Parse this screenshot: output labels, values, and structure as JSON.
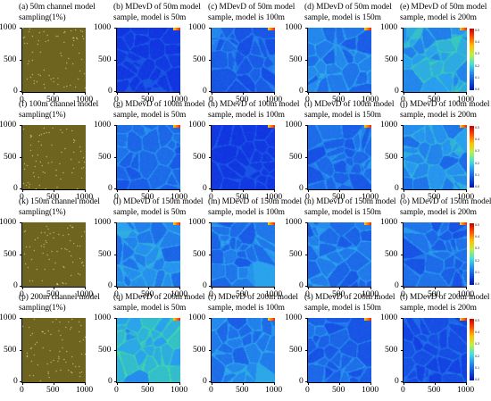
{
  "figure": {
    "panels": [
      {
        "letter": "a",
        "kind": "sampling",
        "line1": "(a) 50m channel model",
        "line2": "sampling(1%)",
        "intensity": 0
      },
      {
        "letter": "b",
        "kind": "mdevd",
        "line1": "(b) MDevD of 50m model",
        "line2": "sample, model is 50m",
        "intensity": 0.05
      },
      {
        "letter": "c",
        "kind": "mdevd",
        "line1": "(c) MDevD of 50m model",
        "line2": "sample, model is 100m",
        "intensity": 0.25
      },
      {
        "letter": "d",
        "kind": "mdevd",
        "line1": "(d) MDevD of 50m model",
        "line2": "sample, model is 150m",
        "intensity": 0.4
      },
      {
        "letter": "e",
        "kind": "mdevd",
        "line1": "(e) MDevD of 50m model",
        "line2": "sample, model is 200m",
        "intensity": 0.65,
        "colorbar": true
      },
      {
        "letter": "f",
        "kind": "sampling",
        "line1": "(f) 100m channel model",
        "line2": "sampling(1%)",
        "intensity": 0
      },
      {
        "letter": "g",
        "kind": "mdevd",
        "line1": "(g) MDevD of 100m model",
        "line2": "sample, model is 50m",
        "intensity": 0.3
      },
      {
        "letter": "h",
        "kind": "mdevd",
        "line1": "(h) MDevD of 100m model",
        "line2": "sample, model is 100m",
        "intensity": 0.05
      },
      {
        "letter": "i",
        "kind": "mdevd",
        "line1": "(i) MDevD of 100m model",
        "line2": "sample, model is 150m",
        "intensity": 0.3
      },
      {
        "letter": "j",
        "kind": "mdevd",
        "line1": "(j) MDevD of 100m model",
        "line2": "sample, model is 200m",
        "intensity": 0.5,
        "colorbar": true
      },
      {
        "letter": "k",
        "kind": "sampling",
        "line1": "(k) 150m channel model",
        "line2": "sampling(1%)",
        "intensity": 0
      },
      {
        "letter": "l",
        "kind": "mdevd",
        "line1": "(l) MDevD of 150m model",
        "line2": "sample, model is 50m",
        "intensity": 0.45
      },
      {
        "letter": "m",
        "kind": "mdevd",
        "line1": "(m) MDevD of 150m model",
        "line2": "sample, model is 100m",
        "intensity": 0.35
      },
      {
        "letter": "n",
        "kind": "mdevd",
        "line1": "(n) MDevD of 150m model",
        "line2": "sample, model is 150m",
        "intensity": 0.35
      },
      {
        "letter": "o",
        "kind": "mdevd",
        "line1": "(o) MDevD of 150m model",
        "line2": "sample, model is 200m",
        "intensity": 0.3,
        "colorbar": true
      },
      {
        "letter": "p",
        "kind": "sampling",
        "line1": "(p) 200m channel model",
        "line2": "sampling(1%)",
        "intensity": 0
      },
      {
        "letter": "q",
        "kind": "mdevd",
        "line1": "(q) MDevD of 200m model",
        "line2": "sample, model is 50m",
        "intensity": 0.75
      },
      {
        "letter": "r",
        "kind": "mdevd",
        "line1": "(r) MDevD of 200m model",
        "line2": "sample, model is 100m",
        "intensity": 0.4
      },
      {
        "letter": "s",
        "kind": "mdevd",
        "line1": "(s) MDevD of 200m model",
        "line2": "sample, model is 150m",
        "intensity": 0.3
      },
      {
        "letter": "t",
        "kind": "mdevd",
        "line1": "(t) MDevD of 200m model",
        "line2": "sample, model is 200m",
        "intensity": 0.15,
        "colorbar": true
      }
    ],
    "x_ticks": [
      "0",
      "500",
      "1000"
    ],
    "y_ticks": [
      "1000",
      "500",
      "0"
    ],
    "colorbar_labels": [
      "0.5",
      "0.4",
      "0.3",
      "0.2",
      "0.1",
      "0.0"
    ],
    "colors": {
      "sampling_background": "#6e6420",
      "sample_point": "#e8e0b0",
      "map_low": "#1030e0",
      "map_mid": "#2aa0f0",
      "map_high": "#40e0a0"
    }
  },
  "chart_data": {
    "type": "heatmap",
    "grid": {
      "rows": 4,
      "cols": 5
    },
    "x_range": [
      0,
      1000
    ],
    "y_range": [
      0,
      1000
    ],
    "x_ticks": [
      0,
      500,
      1000
    ],
    "y_ticks": [
      0,
      500,
      1000
    ],
    "colorbar_range": [
      0.0,
      0.5
    ],
    "colorbar_ticks": [
      0.0,
      0.1,
      0.2,
      0.3,
      0.4,
      0.5
    ],
    "rows": [
      {
        "sample": "50m",
        "panels": [
          "(a) 50m channel model sampling(1%)",
          "(b) model 50m",
          "(c) model 100m",
          "(d) model 150m",
          "(e) model 200m"
        ]
      },
      {
        "sample": "100m",
        "panels": [
          "(f) 100m channel model sampling(1%)",
          "(g) model 50m",
          "(h) model 100m",
          "(i) model 150m",
          "(j) model 200m"
        ]
      },
      {
        "sample": "150m",
        "panels": [
          "(k) 150m channel model sampling(1%)",
          "(l) model 50m",
          "(m) model 100m",
          "(n) model 150m",
          "(o) model 200m"
        ]
      },
      {
        "sample": "200m",
        "panels": [
          "(p) 200m channel model sampling(1%)",
          "(q) model 50m",
          "(r) model 100m",
          "(s) model 150m",
          "(t) model 200m"
        ]
      }
    ]
  }
}
